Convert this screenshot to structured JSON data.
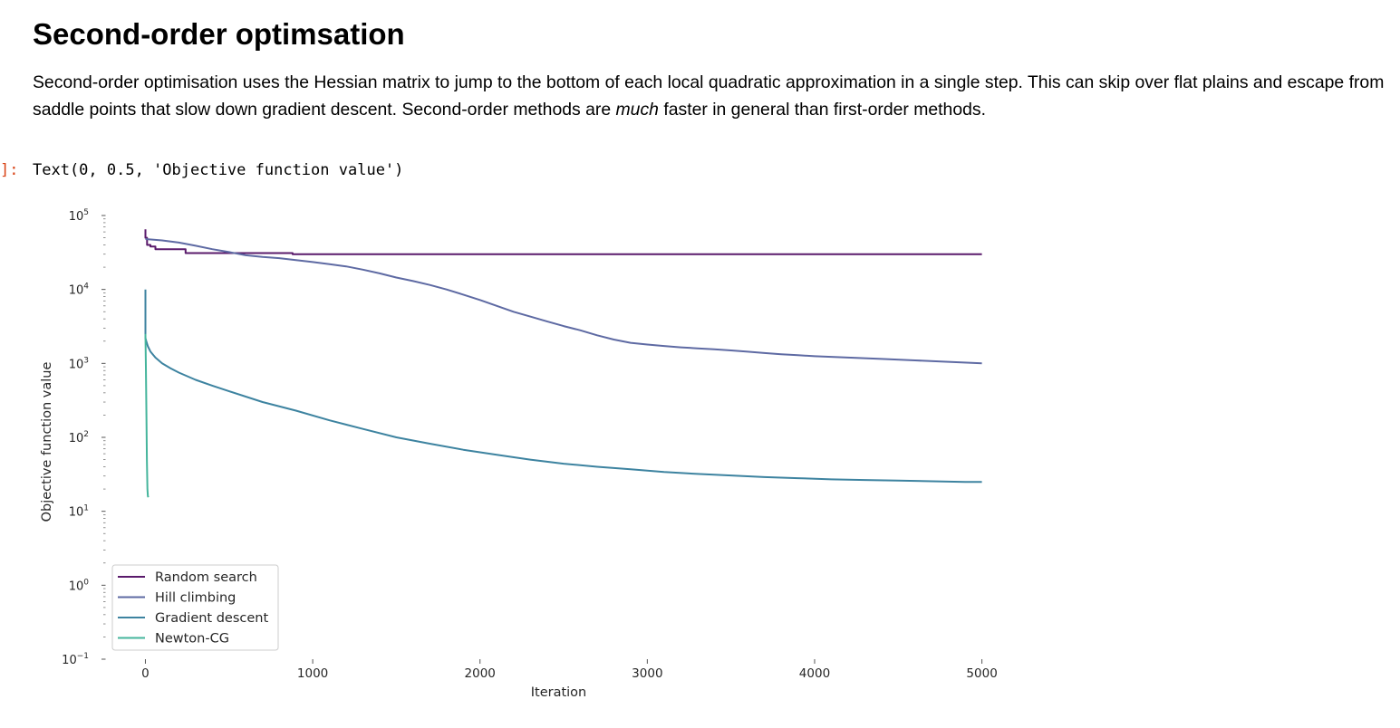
{
  "markdown": {
    "title": "Second-order optimsation",
    "para_before": "Second-order optimisation uses the Hessian matrix to jump to the bottom of each local quadratic approximation in a single step. This can skip over flat plains and escape from saddle points that slow down gradient descent. Second-order methods are ",
    "para_emph": "much",
    "para_after": " faster in general than first-order methods."
  },
  "output": {
    "prompt": "]:",
    "text": "Text(0, 0.5, 'Objective function value')"
  },
  "chart_data": {
    "type": "line",
    "title": "",
    "xlabel": "Iteration",
    "ylabel": "Objective function value",
    "yscale": "log",
    "xlim": [
      -230,
      5170
    ],
    "ylim": [
      0.1,
      100000
    ],
    "xticks": [
      0,
      1000,
      2000,
      3000,
      4000,
      5000
    ],
    "xtick_labels": [
      "0",
      "1000",
      "2000",
      "3000",
      "4000",
      "5000"
    ],
    "yticks": [
      0.1,
      1,
      10,
      100,
      1000,
      10000,
      100000
    ],
    "ytick_base": [
      "10",
      "10",
      "10",
      "10",
      "10",
      "10",
      "10"
    ],
    "ytick_exp": [
      "−1",
      "0",
      "1",
      "2",
      "3",
      "4",
      "5"
    ],
    "grid": false,
    "legend_position": "lower-left",
    "series": [
      {
        "name": "Random search",
        "color": "#5a1a6b",
        "step": true,
        "x": [
          0,
          0,
          10,
          10,
          30,
          30,
          60,
          60,
          100,
          100,
          240,
          240,
          880,
          880,
          5000
        ],
        "y": [
          65000,
          50000,
          50000,
          40000,
          40000,
          38000,
          38000,
          35000,
          35000,
          35000,
          35000,
          31000,
          31000,
          30000,
          30000
        ]
      },
      {
        "name": "Hill climbing",
        "color": "#5e6aa3",
        "step": false,
        "x": [
          0,
          50,
          100,
          200,
          300,
          400,
          500,
          600,
          700,
          800,
          900,
          1000,
          1100,
          1200,
          1300,
          1400,
          1500,
          1600,
          1700,
          1800,
          1900,
          2000,
          2100,
          2200,
          2300,
          2400,
          2500,
          2600,
          2700,
          2800,
          2900,
          3000,
          3100,
          3200,
          3300,
          3400,
          3500,
          3600,
          3700,
          3800,
          3900,
          4000,
          4200,
          4400,
          4600,
          4800,
          5000
        ],
        "y": [
          48000,
          47000,
          46000,
          43000,
          39000,
          35000,
          32000,
          29000,
          27500,
          26500,
          25000,
          23500,
          22000,
          20500,
          18500,
          16500,
          14500,
          13000,
          11500,
          10000,
          8500,
          7200,
          6000,
          5000,
          4300,
          3700,
          3200,
          2800,
          2400,
          2100,
          1900,
          1800,
          1720,
          1650,
          1600,
          1550,
          1500,
          1440,
          1380,
          1330,
          1290,
          1250,
          1200,
          1150,
          1100,
          1050,
          1000
        ]
      },
      {
        "name": "Gradient descent",
        "color": "#3d83a0",
        "step": false,
        "x": [
          0,
          0,
          5,
          15,
          30,
          60,
          100,
          150,
          200,
          300,
          400,
          500,
          700,
          900,
          1100,
          1300,
          1500,
          1700,
          1900,
          2100,
          2300,
          2500,
          2700,
          2900,
          3100,
          3300,
          3500,
          3700,
          3900,
          4100,
          4300,
          4500,
          4700,
          4900,
          5000
        ],
        "y": [
          10000,
          2200,
          2000,
          1700,
          1450,
          1200,
          1000,
          860,
          750,
          600,
          500,
          420,
          300,
          230,
          170,
          130,
          100,
          82,
          68,
          58,
          50,
          44,
          40,
          37,
          34,
          32,
          30.5,
          29,
          28,
          27,
          26.5,
          26,
          25.5,
          25,
          25
        ]
      },
      {
        "name": "Newton-CG",
        "color": "#45b59c",
        "step": false,
        "x": [
          0,
          3,
          6,
          9,
          12,
          15,
          18
        ],
        "y": [
          2500,
          900,
          200,
          50,
          20,
          16,
          15.5
        ]
      }
    ]
  }
}
